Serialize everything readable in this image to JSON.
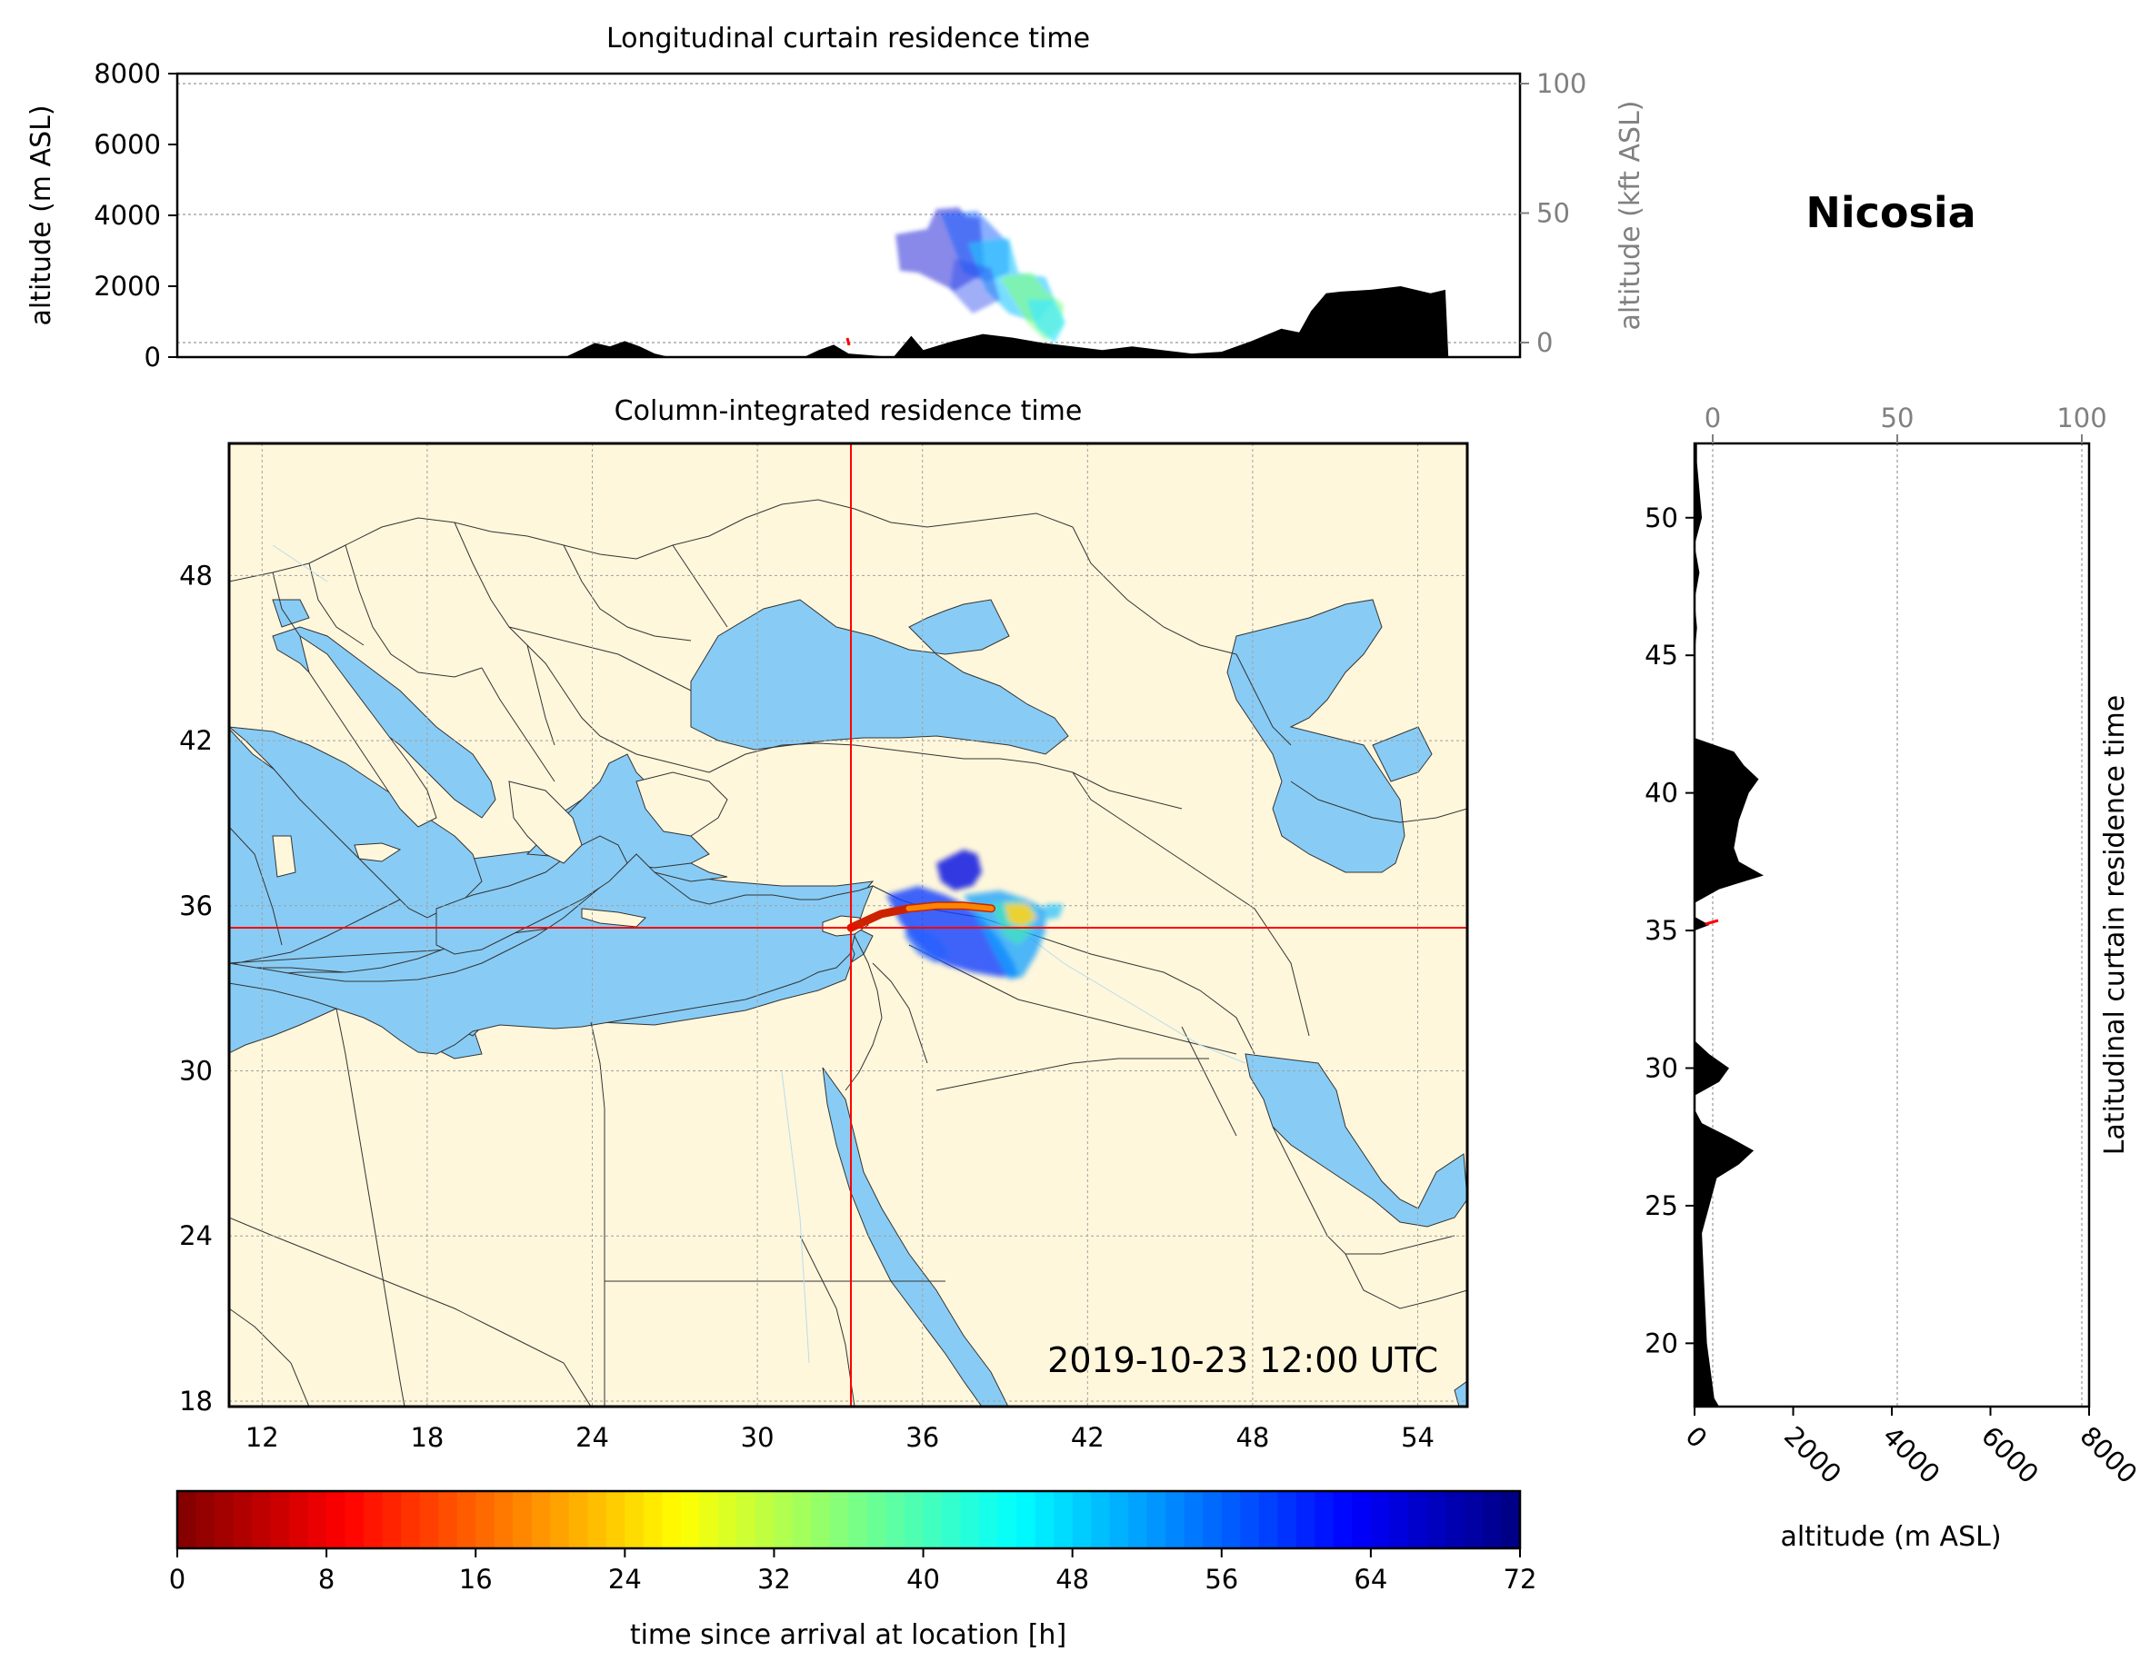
{
  "location": {
    "name": "Nicosia",
    "lon": 33.4,
    "lat": 35.2
  },
  "timestamp": "2019-10-23 12:00 UTC",
  "colors": {
    "ocean": "#88ccf5",
    "land": "#fff7dc",
    "marker": "#ff0000",
    "terrain": "#000000",
    "secondary_axis": "#808080"
  },
  "longitudinal_panel": {
    "title": "Longitudinal curtain residence time",
    "ylabel_left": "altitude (m ASL)",
    "ylabel_right": "altitude (kft ASL)",
    "yticks_left": [
      "0",
      "2000",
      "4000",
      "6000",
      "8000"
    ],
    "yticks_right": [
      "0",
      "50",
      "100"
    ]
  },
  "map_panel": {
    "title": "Column-integrated residence time",
    "xticks": [
      "12",
      "18",
      "24",
      "30",
      "36",
      "42",
      "48",
      "54"
    ],
    "yticks": [
      "18",
      "24",
      "30",
      "36",
      "42",
      "48"
    ],
    "grid": true
  },
  "latitudinal_panel": {
    "ylabel_right": "Latitudinal curtain residence time",
    "xlabel": "altitude (m ASL)",
    "xticks_bottom": [
      "0",
      "2000",
      "4000",
      "6000",
      "8000"
    ],
    "xticks_top": [
      "0",
      "50",
      "100"
    ],
    "yticks": [
      "20",
      "25",
      "30",
      "35",
      "40",
      "45",
      "50"
    ]
  },
  "colorbar": {
    "label": "time since arrival at location [h]",
    "ticks": [
      "0",
      "8",
      "16",
      "24",
      "32",
      "40",
      "48",
      "56",
      "64",
      "72"
    ],
    "colormap": "jet-reversed"
  },
  "chart_data": [
    {
      "type": "area",
      "title": "Longitudinal curtain residence time",
      "xlabel": "",
      "ylabel": "altitude (m ASL)",
      "xlim": [
        11,
        56
      ],
      "ylim": [
        0,
        8000
      ],
      "secondary_ylabel": "altitude (kft ASL)",
      "secondary_ylim": [
        0,
        26.25
      ],
      "grid": true,
      "terrain_profile": {
        "x": [
          11,
          24,
          24.5,
          25,
          25.5,
          26,
          26.5,
          27,
          27.5,
          28,
          32,
          32.5,
          33,
          33.5,
          35,
          35.3,
          35.6,
          36,
          37,
          38,
          39,
          40,
          41,
          42,
          43,
          44,
          45,
          46,
          47,
          48,
          48.6,
          49,
          49.5,
          50,
          51,
          52,
          53,
          53.5,
          53.6,
          56
        ],
        "y": [
          0,
          0,
          200,
          400,
          300,
          450,
          300,
          100,
          0,
          0,
          0,
          200,
          350,
          100,
          0,
          300,
          600,
          200,
          450,
          650,
          550,
          400,
          300,
          200,
          300,
          200,
          100,
          150,
          450,
          800,
          700,
          1300,
          1800,
          1850,
          1900,
          2000,
          1800,
          1900,
          0,
          0
        ]
      },
      "residence_plume": {
        "x_range": [
          35.0,
          40.5
        ],
        "altitude_range": [
          400,
          4100
        ],
        "trend": "altitude decreases eastward while time since arrival decreases"
      }
    },
    {
      "type": "heatmap",
      "title": "Column-integrated residence time",
      "xlim": [
        10.8,
        55.8
      ],
      "ylim": [
        17.8,
        52.8
      ],
      "grid": true,
      "crosshair": {
        "lon": 33.4,
        "lat": 35.2
      },
      "plume_extent": {
        "lon": [
          33.5,
          40.6
        ],
        "lat": [
          33.0,
          37.9
        ]
      },
      "recent_arrival_track": {
        "lon": [
          33.4,
          34.5,
          35.5,
          36.5,
          37.5,
          38.5
        ],
        "lat": [
          35.2,
          35.7,
          35.9,
          36.0,
          36.0,
          35.9
        ],
        "time_h": [
          0,
          3,
          6,
          10,
          14,
          18
        ]
      }
    },
    {
      "type": "area",
      "title": "Latitudinal curtain residence time",
      "xlabel": "altitude (m ASL)",
      "xlim": [
        0,
        8000
      ],
      "ylim": [
        17.7,
        52.7
      ],
      "secondary_xlim": [
        0,
        26.25
      ],
      "grid": true,
      "terrain_profile": {
        "lat": [
          17.7,
          18,
          20,
          22,
          24,
          25,
          26,
          26.5,
          27,
          27.5,
          28,
          28.5,
          29,
          29.5,
          30,
          30.5,
          31,
          32,
          33,
          34,
          35,
          35.2,
          35.5,
          36,
          36.5,
          37,
          37.5,
          38,
          39,
          40,
          40.5,
          41,
          41.5,
          42,
          43,
          44,
          45,
          46,
          47,
          48,
          49,
          50,
          51,
          52,
          52.7
        ],
        "alt": [
          500,
          400,
          250,
          200,
          150,
          300,
          450,
          900,
          1200,
          700,
          150,
          0,
          0,
          500,
          700,
          300,
          0,
          0,
          0,
          0,
          0,
          300,
          0,
          0,
          500,
          1400,
          900,
          800,
          900,
          1100,
          1300,
          1000,
          800,
          0,
          0,
          0,
          0,
          50,
          0,
          100,
          0,
          150,
          100,
          50,
          50
        ]
      }
    }
  ]
}
